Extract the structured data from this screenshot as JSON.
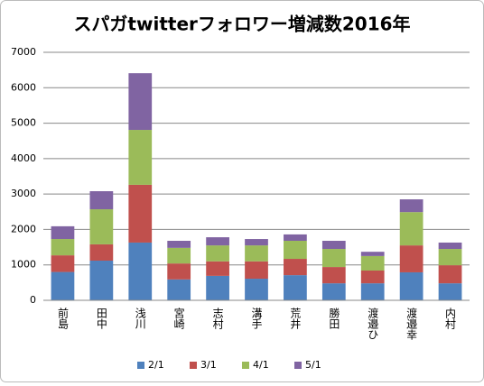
{
  "chart_data": {
    "type": "stacked_bar",
    "title": "スパガtwitterフォロワー増減数2016年",
    "categories": [
      "前島",
      "田中",
      "浅川",
      "宮崎",
      "志村",
      "溝手",
      "荒井",
      "勝田",
      "渡邉ひ",
      "渡邉幸",
      "内村"
    ],
    "series": [
      {
        "name": "2/1",
        "color": "#4f81bd",
        "values": [
          800,
          1120,
          1630,
          590,
          690,
          610,
          710,
          480,
          480,
          790,
          480
        ]
      },
      {
        "name": "3/1",
        "color": "#c0504d",
        "values": [
          470,
          460,
          1630,
          450,
          410,
          490,
          460,
          460,
          360,
          760,
          510
        ]
      },
      {
        "name": "4/1",
        "color": "#9bbb59",
        "values": [
          460,
          990,
          1550,
          440,
          450,
          450,
          510,
          510,
          410,
          940,
          460
        ]
      },
      {
        "name": "5/1",
        "color": "#8064a2",
        "values": [
          360,
          510,
          1600,
          200,
          230,
          180,
          180,
          230,
          120,
          360,
          180
        ]
      }
    ],
    "ylim": [
      0,
      7000
    ],
    "yticks": [
      0,
      1000,
      2000,
      3000,
      4000,
      5000,
      6000,
      7000
    ],
    "grid": true,
    "legend": "bottom"
  }
}
